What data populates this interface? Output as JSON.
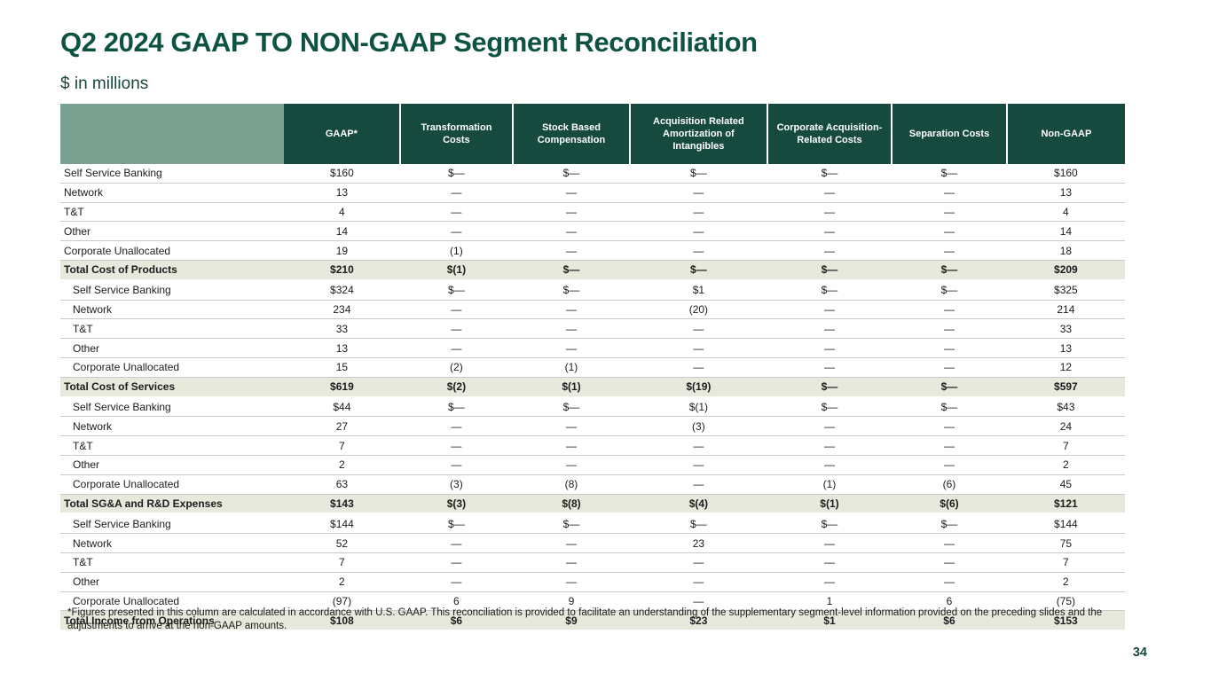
{
  "page": {
    "title": "Q2 2024 GAAP TO NON-GAAP Segment Reconciliation",
    "subtitle": "$ in millions",
    "page_number": "34"
  },
  "colors": {
    "title_green": "#0e5342",
    "header_green": "#164a3e",
    "sage_corner": "#7aa092",
    "total_row_bg": "#e6e9dc",
    "row_line": "#cbcbcb"
  },
  "table": {
    "columns": [
      "",
      "GAAP*",
      "Transformation Costs",
      "Stock Based Compensation",
      "Acquisition Related Amortization of Intangibles",
      "Corporate Acquisition-Related Costs",
      "Separation Costs",
      "Non-GAAP"
    ],
    "sections": [
      {
        "indent": false,
        "rows": [
          {
            "label": "Self Service Banking",
            "values": [
              "$160",
              "$—",
              "$—",
              "$—",
              "$—",
              "$—",
              "$160"
            ]
          },
          {
            "label": "Network",
            "values": [
              "13",
              "—",
              "—",
              "—",
              "—",
              "—",
              "13"
            ]
          },
          {
            "label": "T&T",
            "values": [
              "4",
              "—",
              "—",
              "—",
              "—",
              "—",
              "4"
            ]
          },
          {
            "label": "Other",
            "values": [
              "14",
              "—",
              "—",
              "—",
              "—",
              "—",
              "14"
            ]
          },
          {
            "label": "Corporate Unallocated",
            "values": [
              "19",
              "(1)",
              "—",
              "—",
              "—",
              "—",
              "18"
            ]
          }
        ],
        "total": {
          "label": "Total Cost of Products",
          "values": [
            "$210",
            "$(1)",
            "$—",
            "$—",
            "$—",
            "$—",
            "$209"
          ]
        }
      },
      {
        "indent": true,
        "rows": [
          {
            "label": "Self Service Banking",
            "values": [
              "$324",
              "$—",
              "$—",
              "$1",
              "$—",
              "$—",
              "$325"
            ]
          },
          {
            "label": "Network",
            "values": [
              "234",
              "—",
              "—",
              "(20)",
              "—",
              "—",
              "214"
            ]
          },
          {
            "label": "T&T",
            "values": [
              "33",
              "—",
              "—",
              "—",
              "—",
              "—",
              "33"
            ]
          },
          {
            "label": "Other",
            "values": [
              "13",
              "—",
              "—",
              "—",
              "—",
              "—",
              "13"
            ]
          },
          {
            "label": "Corporate Unallocated",
            "values": [
              "15",
              "(2)",
              "(1)",
              "—",
              "—",
              "—",
              "12"
            ]
          }
        ],
        "total": {
          "label": "Total Cost of Services",
          "values": [
            "$619",
            "$(2)",
            "$(1)",
            "$(19)",
            "$—",
            "$—",
            "$597"
          ]
        }
      },
      {
        "indent": true,
        "rows": [
          {
            "label": "Self Service Banking",
            "values": [
              "$44",
              "$—",
              "$—",
              "$(1)",
              "$—",
              "$—",
              "$43"
            ]
          },
          {
            "label": "Network",
            "values": [
              "27",
              "—",
              "—",
              "(3)",
              "—",
              "—",
              "24"
            ]
          },
          {
            "label": "T&T",
            "values": [
              "7",
              "—",
              "—",
              "—",
              "—",
              "—",
              "7"
            ]
          },
          {
            "label": "Other",
            "values": [
              "2",
              "—",
              "—",
              "—",
              "—",
              "—",
              "2"
            ]
          },
          {
            "label": "Corporate Unallocated",
            "values": [
              "63",
              "(3)",
              "(8)",
              "—",
              "(1)",
              "(6)",
              "45"
            ]
          }
        ],
        "total": {
          "label": "Total SG&A and R&D Expenses",
          "values": [
            "$143",
            "$(3)",
            "$(8)",
            "$(4)",
            "$(1)",
            "$(6)",
            "$121"
          ]
        }
      },
      {
        "indent": true,
        "rows": [
          {
            "label": "Self Service Banking",
            "values": [
              "$144",
              "$—",
              "$—",
              "$—",
              "$—",
              "$—",
              "$144"
            ]
          },
          {
            "label": "Network",
            "values": [
              "52",
              "—",
              "—",
              "23",
              "—",
              "—",
              "75"
            ]
          },
          {
            "label": "T&T",
            "values": [
              "7",
              "—",
              "—",
              "—",
              "—",
              "—",
              "7"
            ]
          },
          {
            "label": "Other",
            "values": [
              "2",
              "—",
              "—",
              "—",
              "—",
              "—",
              "2"
            ]
          },
          {
            "label": "Corporate Unallocated",
            "values": [
              "(97)",
              "6",
              "9",
              "—",
              "1",
              "6",
              "(75)"
            ]
          }
        ],
        "total": {
          "label": "Total Income from Operations",
          "values": [
            "$108",
            "$6",
            "$9",
            "$23",
            "$1",
            "$6",
            "$153"
          ]
        }
      }
    ]
  },
  "footnote": "*Figures presented in this column are calculated in accordance with U.S. GAAP. This reconciliation is provided to facilitate an understanding of the supplementary segment-level information provided  on the preceding slides and the adjustments to arrive at the non-GAAP amounts."
}
